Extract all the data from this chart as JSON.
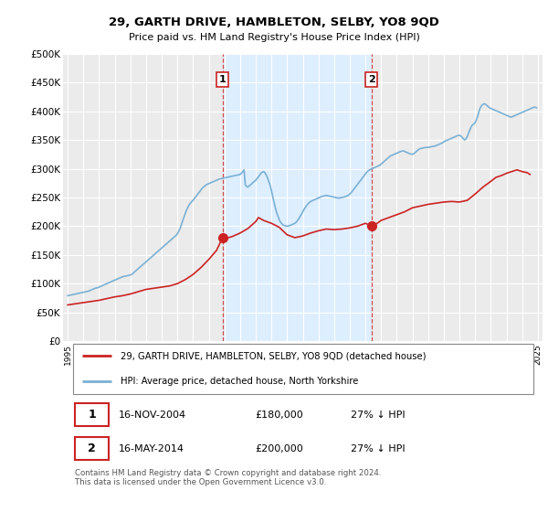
{
  "title": "29, GARTH DRIVE, HAMBLETON, SELBY, YO8 9QD",
  "subtitle": "Price paid vs. HM Land Registry's House Price Index (HPI)",
  "ylabel_ticks": [
    "£0",
    "£50K",
    "£100K",
    "£150K",
    "£200K",
    "£250K",
    "£300K",
    "£350K",
    "£400K",
    "£450K",
    "£500K"
  ],
  "ytick_values": [
    0,
    50000,
    100000,
    150000,
    200000,
    250000,
    300000,
    350000,
    400000,
    450000,
    500000
  ],
  "ylim": [
    0,
    500000
  ],
  "xlim": [
    1994.7,
    2025.3
  ],
  "background_color": "#ffffff",
  "plot_bg_color": "#ebebeb",
  "shade_color": "#ddeeff",
  "grid_color": "#ffffff",
  "hpi_color": "#7ab0d4",
  "price_color": "#cc2222",
  "transaction1_x": 2004.88,
  "transaction1_y": 180000,
  "transaction2_x": 2014.38,
  "transaction2_y": 200000,
  "legend_label_price": "29, GARTH DRIVE, HAMBLETON, SELBY, YO8 9QD (detached house)",
  "legend_label_hpi": "HPI: Average price, detached house, North Yorkshire",
  "table_row1": [
    "1",
    "16-NOV-2004",
    "£180,000",
    "27% ↓ HPI"
  ],
  "table_row2": [
    "2",
    "16-MAY-2014",
    "£200,000",
    "27% ↓ HPI"
  ],
  "footnote": "Contains HM Land Registry data © Crown copyright and database right 2024.\nThis data is licensed under the Open Government Licence v3.0.",
  "hpi_data": {
    "years": [
      1995,
      1995.08,
      1995.17,
      1995.25,
      1995.33,
      1995.42,
      1995.5,
      1995.58,
      1995.67,
      1995.75,
      1995.83,
      1995.92,
      1996,
      1996.08,
      1996.17,
      1996.25,
      1996.33,
      1996.42,
      1996.5,
      1996.58,
      1996.67,
      1996.75,
      1996.83,
      1996.92,
      1997,
      1997.08,
      1997.17,
      1997.25,
      1997.33,
      1997.42,
      1997.5,
      1997.58,
      1997.67,
      1997.75,
      1997.83,
      1997.92,
      1998,
      1998.08,
      1998.17,
      1998.25,
      1998.33,
      1998.42,
      1998.5,
      1998.58,
      1998.67,
      1998.75,
      1998.83,
      1998.92,
      1999,
      1999.08,
      1999.17,
      1999.25,
      1999.33,
      1999.42,
      1999.5,
      1999.58,
      1999.67,
      1999.75,
      1999.83,
      1999.92,
      2000,
      2000.08,
      2000.17,
      2000.25,
      2000.33,
      2000.42,
      2000.5,
      2000.58,
      2000.67,
      2000.75,
      2000.83,
      2000.92,
      2001,
      2001.08,
      2001.17,
      2001.25,
      2001.33,
      2001.42,
      2001.5,
      2001.58,
      2001.67,
      2001.75,
      2001.83,
      2001.92,
      2002,
      2002.08,
      2002.17,
      2002.25,
      2002.33,
      2002.42,
      2002.5,
      2002.58,
      2002.67,
      2002.75,
      2002.83,
      2002.92,
      2003,
      2003.08,
      2003.17,
      2003.25,
      2003.33,
      2003.42,
      2003.5,
      2003.58,
      2003.67,
      2003.75,
      2003.83,
      2003.92,
      2004,
      2004.08,
      2004.17,
      2004.25,
      2004.33,
      2004.42,
      2004.5,
      2004.58,
      2004.67,
      2004.75,
      2004.83,
      2004.92,
      2005,
      2005.08,
      2005.17,
      2005.25,
      2005.33,
      2005.42,
      2005.5,
      2005.58,
      2005.67,
      2005.75,
      2005.83,
      2005.92,
      2006,
      2006.08,
      2006.17,
      2006.25,
      2006.33,
      2006.42,
      2006.5,
      2006.58,
      2006.67,
      2006.75,
      2006.83,
      2006.92,
      2007,
      2007.08,
      2007.17,
      2007.25,
      2007.33,
      2007.42,
      2007.5,
      2007.58,
      2007.67,
      2007.75,
      2007.83,
      2007.92,
      2008,
      2008.08,
      2008.17,
      2008.25,
      2008.33,
      2008.42,
      2008.5,
      2008.58,
      2008.67,
      2008.75,
      2008.83,
      2008.92,
      2009,
      2009.08,
      2009.17,
      2009.25,
      2009.33,
      2009.42,
      2009.5,
      2009.58,
      2009.67,
      2009.75,
      2009.83,
      2009.92,
      2010,
      2010.08,
      2010.17,
      2010.25,
      2010.33,
      2010.42,
      2010.5,
      2010.58,
      2010.67,
      2010.75,
      2010.83,
      2010.92,
      2011,
      2011.08,
      2011.17,
      2011.25,
      2011.33,
      2011.42,
      2011.5,
      2011.58,
      2011.67,
      2011.75,
      2011.83,
      2011.92,
      2012,
      2012.08,
      2012.17,
      2012.25,
      2012.33,
      2012.42,
      2012.5,
      2012.58,
      2012.67,
      2012.75,
      2012.83,
      2012.92,
      2013,
      2013.08,
      2013.17,
      2013.25,
      2013.33,
      2013.42,
      2013.5,
      2013.58,
      2013.67,
      2013.75,
      2013.83,
      2013.92,
      2014,
      2014.08,
      2014.17,
      2014.25,
      2014.33,
      2014.42,
      2014.5,
      2014.58,
      2014.67,
      2014.75,
      2014.83,
      2014.92,
      2015,
      2015.08,
      2015.17,
      2015.25,
      2015.33,
      2015.42,
      2015.5,
      2015.58,
      2015.67,
      2015.75,
      2015.83,
      2015.92,
      2016,
      2016.08,
      2016.17,
      2016.25,
      2016.33,
      2016.42,
      2016.5,
      2016.58,
      2016.67,
      2016.75,
      2016.83,
      2016.92,
      2017,
      2017.08,
      2017.17,
      2017.25,
      2017.33,
      2017.42,
      2017.5,
      2017.58,
      2017.67,
      2017.75,
      2017.83,
      2017.92,
      2018,
      2018.08,
      2018.17,
      2018.25,
      2018.33,
      2018.42,
      2018.5,
      2018.58,
      2018.67,
      2018.75,
      2018.83,
      2018.92,
      2019,
      2019.08,
      2019.17,
      2019.25,
      2019.33,
      2019.42,
      2019.5,
      2019.58,
      2019.67,
      2019.75,
      2019.83,
      2019.92,
      2020,
      2020.08,
      2020.17,
      2020.25,
      2020.33,
      2020.42,
      2020.5,
      2020.58,
      2020.67,
      2020.75,
      2020.83,
      2020.92,
      2021,
      2021.08,
      2021.17,
      2021.25,
      2021.33,
      2021.42,
      2021.5,
      2021.58,
      2021.67,
      2021.75,
      2021.83,
      2021.92,
      2022,
      2022.08,
      2022.17,
      2022.25,
      2022.33,
      2022.42,
      2022.5,
      2022.58,
      2022.67,
      2022.75,
      2022.83,
      2022.92,
      2023,
      2023.08,
      2023.17,
      2023.25,
      2023.33,
      2023.42,
      2023.5,
      2023.58,
      2023.67,
      2023.75,
      2023.83,
      2023.92,
      2024,
      2024.08,
      2024.17,
      2024.25,
      2024.33,
      2024.42,
      2024.5,
      2024.58,
      2024.67,
      2024.75,
      2024.83,
      2024.92
    ],
    "values": [
      79000,
      79500,
      80000,
      80500,
      81000,
      81500,
      82000,
      82500,
      83000,
      83500,
      84000,
      84500,
      85000,
      85500,
      86000,
      86500,
      87000,
      88000,
      89000,
      90000,
      91000,
      92000,
      92500,
      93000,
      94000,
      95000,
      96000,
      97000,
      98000,
      99000,
      100000,
      101000,
      102000,
      103000,
      104000,
      105000,
      106000,
      107000,
      108000,
      109000,
      110000,
      111000,
      112000,
      112500,
      113000,
      113500,
      114000,
      114500,
      115000,
      116000,
      118000,
      120000,
      122000,
      124000,
      126000,
      128000,
      130000,
      132000,
      134000,
      136000,
      138000,
      140000,
      142000,
      144000,
      146000,
      148000,
      150000,
      152000,
      154000,
      156000,
      158000,
      160000,
      162000,
      164000,
      166000,
      168000,
      170000,
      172000,
      174000,
      176000,
      178000,
      180000,
      182000,
      184000,
      187000,
      191000,
      196000,
      202000,
      209000,
      216000,
      222000,
      228000,
      233000,
      237000,
      240000,
      243000,
      245000,
      248000,
      251000,
      254000,
      257000,
      260000,
      263000,
      266000,
      268000,
      270000,
      272000,
      273000,
      274000,
      275000,
      276000,
      277000,
      278000,
      279000,
      280000,
      281000,
      282000,
      282500,
      283000,
      283500,
      284000,
      284500,
      285000,
      285500,
      286000,
      286500,
      287000,
      287500,
      288000,
      288500,
      289000,
      289500,
      290000,
      292000,
      295000,
      298000,
      272000,
      269000,
      268000,
      270000,
      272000,
      274000,
      276000,
      278000,
      280000,
      283000,
      286000,
      289000,
      292000,
      294000,
      295000,
      293000,
      289000,
      284000,
      278000,
      271000,
      262000,
      252000,
      241000,
      232000,
      224000,
      217000,
      211000,
      207000,
      204000,
      202000,
      201000,
      200500,
      200000,
      200500,
      201000,
      202000,
      203000,
      204000,
      205000,
      207000,
      210000,
      213000,
      217000,
      221000,
      225000,
      229000,
      233000,
      236000,
      239000,
      241000,
      243000,
      244000,
      245000,
      246000,
      247000,
      248000,
      249000,
      250000,
      251000,
      252000,
      252500,
      253000,
      253500,
      253000,
      252500,
      252000,
      251500,
      251000,
      250500,
      250000,
      249500,
      249000,
      249000,
      249500,
      250000,
      250500,
      251000,
      252000,
      253000,
      254000,
      256000,
      258000,
      261000,
      264000,
      267000,
      270000,
      273000,
      276000,
      279000,
      282000,
      285000,
      288000,
      291000,
      294000,
      296000,
      298000,
      299000,
      300000,
      301000,
      302000,
      303000,
      304000,
      305000,
      306000,
      308000,
      310000,
      312000,
      314000,
      316000,
      318000,
      320000,
      322000,
      323000,
      324000,
      325000,
      326000,
      327000,
      328000,
      329000,
      330000,
      330500,
      331000,
      330000,
      329000,
      328000,
      327000,
      326000,
      325500,
      325000,
      326000,
      328000,
      330000,
      332000,
      334000,
      335000,
      335500,
      336000,
      336500,
      337000,
      337000,
      337000,
      337500,
      338000,
      338500,
      339000,
      339500,
      340000,
      341000,
      342000,
      343000,
      344000,
      345000,
      347000,
      348000,
      349000,
      350000,
      351000,
      352000,
      353000,
      354000,
      355000,
      356000,
      357000,
      358000,
      358000,
      357000,
      355000,
      352000,
      350000,
      352000,
      356000,
      362000,
      368000,
      373000,
      376000,
      378000,
      380000,
      385000,
      392000,
      400000,
      406000,
      410000,
      412000,
      413000,
      412000,
      410000,
      408000,
      406000,
      405000,
      404000,
      403000,
      402000,
      401000,
      400000,
      399000,
      398000,
      397000,
      396000,
      395000,
      394000,
      393000,
      392000,
      391000,
      390000,
      390000,
      391000,
      392000,
      393000,
      394000,
      395000,
      396000,
      397000,
      398000,
      399000,
      400000,
      401000,
      402000,
      403000,
      404000,
      405000,
      406000,
      407000,
      407000,
      406000
    ]
  },
  "price_data": {
    "years": [
      1995,
      1995.5,
      1996,
      1996.5,
      1997,
      1997.5,
      1998,
      1998.5,
      1999,
      1999.5,
      2000,
      2000.5,
      2001,
      2001.5,
      2002,
      2002.5,
      2003,
      2003.5,
      2004,
      2004.5,
      2004.88,
      2005,
      2005.5,
      2006,
      2006.5,
      2007,
      2007.17,
      2007.5,
      2008,
      2008.5,
      2009,
      2009.5,
      2010,
      2010.5,
      2011,
      2011.5,
      2012,
      2012.5,
      2013,
      2013.5,
      2014,
      2014.38,
      2014.75,
      2015,
      2015.5,
      2016,
      2016.5,
      2017,
      2017.5,
      2018,
      2018.5,
      2019,
      2019.5,
      2020,
      2020.5,
      2021,
      2021.5,
      2022,
      2022.33,
      2022.67,
      2023,
      2023.33,
      2023.67,
      2024,
      2024.33,
      2024.5
    ],
    "values": [
      63000,
      65000,
      67000,
      69000,
      71000,
      74000,
      77000,
      79000,
      82000,
      86000,
      90000,
      92000,
      94000,
      96000,
      100000,
      107000,
      116000,
      128000,
      142000,
      158000,
      180000,
      178000,
      182000,
      188000,
      196000,
      208000,
      215000,
      210000,
      205000,
      198000,
      185000,
      180000,
      183000,
      188000,
      192000,
      195000,
      194000,
      195000,
      197000,
      200000,
      205000,
      200000,
      205000,
      210000,
      215000,
      220000,
      225000,
      232000,
      235000,
      238000,
      240000,
      242000,
      243000,
      242000,
      245000,
      256000,
      268000,
      278000,
      285000,
      288000,
      292000,
      295000,
      298000,
      295000,
      293000,
      290000
    ]
  },
  "dashed_line1_x": 2004.88,
  "dashed_line2_x": 2014.38
}
